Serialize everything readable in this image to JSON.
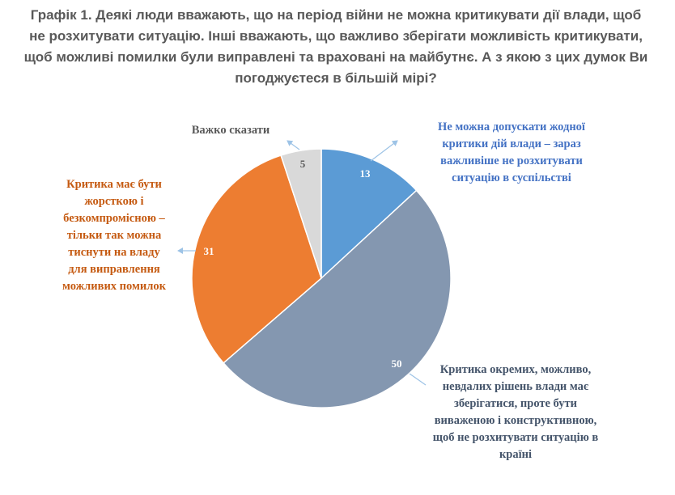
{
  "title_lines": [
    "Графік 1. Деякі люди вважають, що на період війни не можна критикувати дії влади, щоб",
    "не розхитувати ситуацію. Інші вважають, що важливо зберігати можливість критикувати,",
    "щоб можливі помилки були виправлені та враховані на майбутнє. А з якою з цих думок Ви",
    "погоджуєтеся в більшій мірі?"
  ],
  "chart_data": {
    "type": "pie",
    "title": "Графік 1. Деякі люди вважають, що на період війни не можна критикувати дії влади, щоб не розхитувати ситуацію. Інші вважають, що важливо зберігати можливість критикувати, щоб можливі помилки були виправлені та враховані на майбутнє. А з якою з цих думок Ви погоджуєтеся в більшій мірі?",
    "start": "12 o'clock, clockwise",
    "slices": [
      {
        "value": 13,
        "color": "#5b9bd5",
        "label_color": "#4472c4",
        "label_lines": [
          "Не можна допускати жодної",
          "критики дій влади – зараз",
          "важливіше не розхитувати",
          "ситуацію в суспільстві"
        ]
      },
      {
        "value": 50,
        "color": "#8497b0",
        "label_color": "#44546a",
        "label_lines": [
          "Критика окремих, можливо,",
          "невдалих рішень влади має",
          "зберігатися, проте бути",
          "виваженою і конструктивною,",
          "щоб не розхитувати ситуацію в",
          "країні"
        ]
      },
      {
        "value": 31,
        "color": "#ed7d31",
        "label_color": "#c55a11",
        "label_lines": [
          "Критика має бути",
          "жорсткою і",
          "безкомпромісною –",
          "тільки так можна",
          "тиснути на владу",
          "для виправлення",
          "можливих помилок"
        ]
      },
      {
        "value": 5,
        "color": "#d9d9d9",
        "label_color": "#595959",
        "label_lines": [
          "Важко сказати"
        ]
      }
    ]
  }
}
